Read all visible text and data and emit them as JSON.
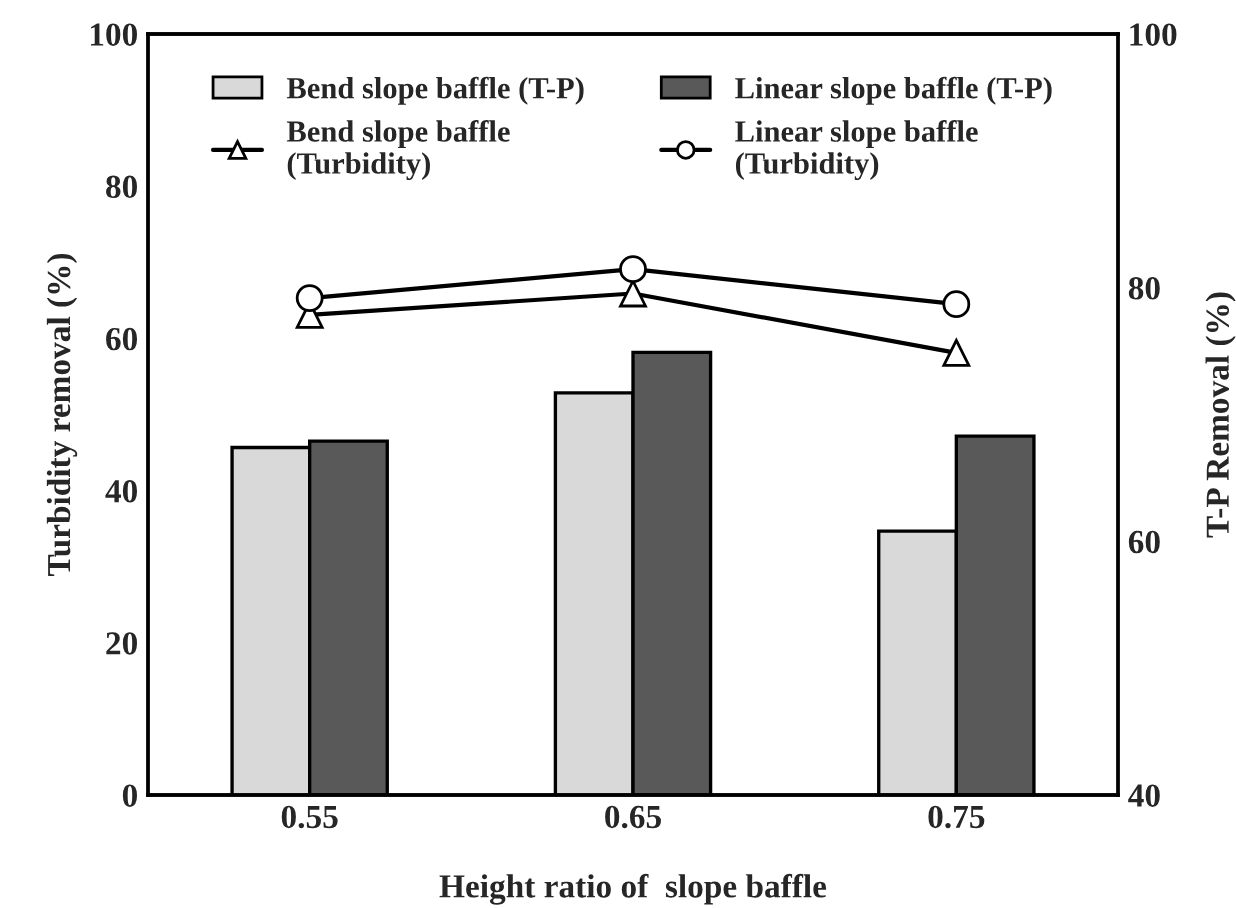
{
  "chart_data": {
    "type": "bar",
    "xlabel": "Height ratio of  slope baffle",
    "ylabel": "Turbidity removal (%)",
    "y2label": "T-P Removal (%)",
    "categories": [
      "0.55",
      "0.65",
      "0.75"
    ],
    "series": [
      {
        "name": "Bend slope baffle (T-P)",
        "axis": "y2",
        "color": "#d9d9d9",
        "values": [
          67.4,
          71.7,
          60.8
        ]
      },
      {
        "name": "Linear slope baffle (T-P)",
        "axis": "y2",
        "color": "#595959",
        "values": [
          67.9,
          74.9,
          68.3
        ]
      },
      {
        "name": "Bend slope baffle\n(Turbidity)",
        "type": "line",
        "axis": "y",
        "color": "#000000",
        "marker": "triangle",
        "values": [
          63.1,
          65.9,
          58.1
        ]
      },
      {
        "name": "Linear slope baffle\n(Turbidity)",
        "type": "line",
        "axis": "y",
        "color": "#000000",
        "marker": "circle",
        "values": [
          65.3,
          69.1,
          64.5
        ]
      }
    ],
    "ylim": [
      0,
      100
    ],
    "yticks": [
      0,
      20,
      40,
      60,
      80,
      100
    ],
    "y2lim": [
      40,
      100
    ],
    "y2ticks": [
      40,
      60,
      80,
      100
    ],
    "grid": false,
    "legend": "top"
  }
}
